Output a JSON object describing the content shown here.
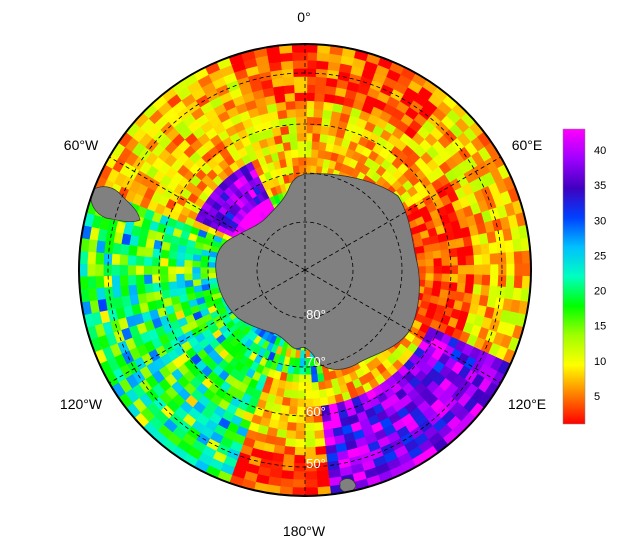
{
  "map": {
    "projection": "south-polar-stereographic",
    "longitude_labels": [
      {
        "name": "lon-0",
        "text": "0°"
      },
      {
        "name": "lon-60e",
        "text": "60°E"
      },
      {
        "name": "lon-120e",
        "text": "120°E"
      },
      {
        "name": "lon-180w",
        "text": "180°W"
      },
      {
        "name": "lon-120w",
        "text": "120°W"
      },
      {
        "name": "lon-60w",
        "text": "60°W"
      }
    ],
    "latitude_labels": [
      {
        "name": "lat-80",
        "text": "80°"
      },
      {
        "name": "lat-70",
        "text": "70°"
      },
      {
        "name": "lat-60",
        "text": "60°"
      },
      {
        "name": "lat-50",
        "text": "50°"
      }
    ],
    "land_color": "#808080",
    "grid_line_style": "dashed",
    "colormap": [
      "#ff0000",
      "#ff8000",
      "#ffff00",
      "#a0ff00",
      "#00ff00",
      "#00ffc0",
      "#00c0ff",
      "#0040ff",
      "#4000c0",
      "#a000ff",
      "#ff00ff"
    ]
  },
  "colorbar": {
    "ticks": [
      "5",
      "10",
      "15",
      "20",
      "25",
      "30",
      "35",
      "40"
    ],
    "range": [
      1,
      43
    ]
  }
}
